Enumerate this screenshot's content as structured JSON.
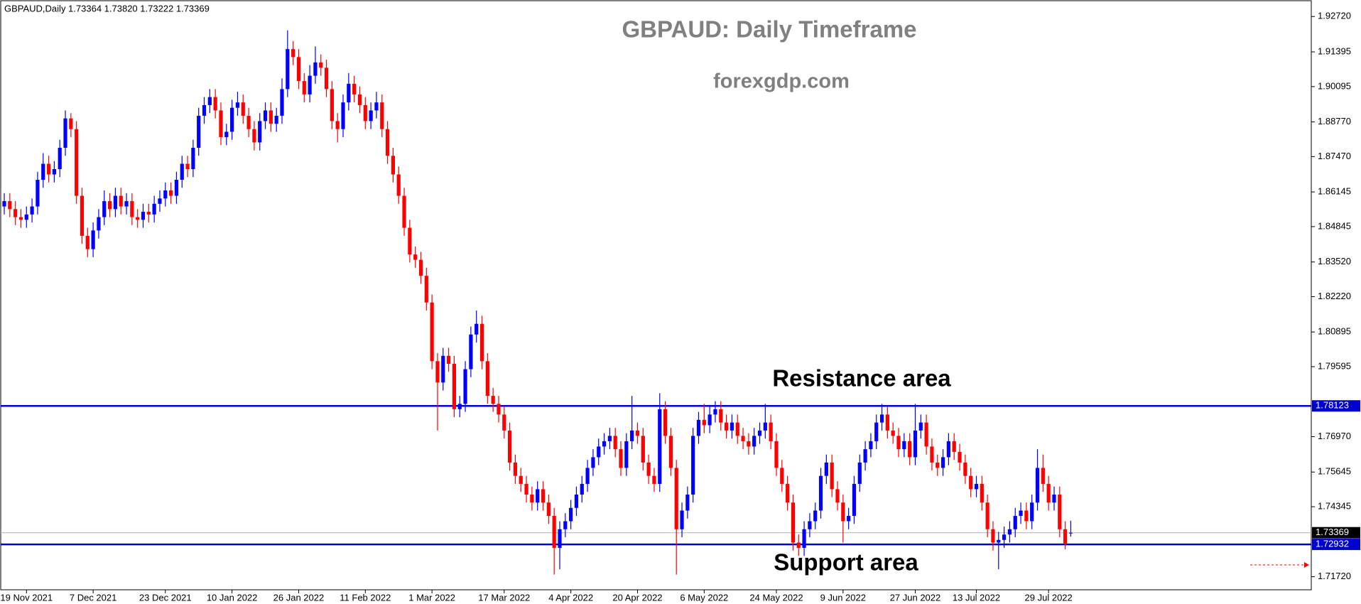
{
  "chart_data": {
    "type": "candlestick",
    "header": "GBPAUD,Daily  1.73364 1.73820 1.73222 1.73369",
    "title": "GBPAUD: Daily Timeframe",
    "subtitle": "forexgdp.com",
    "annotations": [
      "Resistance area",
      "Support area"
    ],
    "bull_color": "#0000ff",
    "bear_color": "#ff0000",
    "grid": false,
    "ylim": [
      1.7123,
      1.9334
    ],
    "yticks": [
      {
        "value": 1.9272,
        "label": "1.92720"
      },
      {
        "value": 1.91395,
        "label": "1.91395"
      },
      {
        "value": 1.90095,
        "label": "1.90095"
      },
      {
        "value": 1.8877,
        "label": "1.88770"
      },
      {
        "value": 1.8747,
        "label": "1.87470"
      },
      {
        "value": 1.86145,
        "label": "1.86145"
      },
      {
        "value": 1.84845,
        "label": "1.84845"
      },
      {
        "value": 1.8352,
        "label": "1.83520"
      },
      {
        "value": 1.8222,
        "label": "1.82220"
      },
      {
        "value": 1.80895,
        "label": "1.80895"
      },
      {
        "value": 1.79595,
        "label": "1.79595"
      },
      {
        "value": 1.7697,
        "label": "1.76970"
      },
      {
        "value": 1.75645,
        "label": "1.75645"
      },
      {
        "value": 1.74345,
        "label": "1.74345"
      },
      {
        "value": 1.7172,
        "label": "1.71720"
      }
    ],
    "levels": [
      {
        "value": 1.78123,
        "color": "#0000cc",
        "label_bg": "#0000cc"
      },
      {
        "value": 1.72932,
        "color": "#0000cc",
        "label_bg": "#0000cc"
      },
      {
        "value": 1.73369,
        "color": "#b0b0b0",
        "label_bg": "#000000"
      }
    ],
    "categories": [
      null,
      null,
      null,
      null,
      "19 Nov 2021",
      null,
      null,
      null,
      null,
      null,
      null,
      null,
      null,
      null,
      null,
      null,
      "7 Dec 2021",
      null,
      null,
      null,
      null,
      null,
      null,
      null,
      null,
      null,
      null,
      null,
      null,
      "23 Dec 2021",
      null,
      null,
      null,
      null,
      null,
      null,
      null,
      null,
      null,
      null,
      null,
      "10 Jan 2022",
      null,
      null,
      null,
      null,
      null,
      null,
      null,
      null,
      null,
      null,
      null,
      "26 Jan 2022",
      null,
      null,
      null,
      null,
      null,
      null,
      null,
      null,
      null,
      null,
      null,
      "11 Feb 2022",
      null,
      null,
      null,
      null,
      null,
      null,
      null,
      null,
      null,
      null,
      null,
      "1 Mar 2022",
      null,
      null,
      null,
      null,
      null,
      null,
      null,
      null,
      null,
      null,
      null,
      null,
      "17 Mar 2022",
      null,
      null,
      null,
      null,
      null,
      null,
      null,
      null,
      null,
      null,
      null,
      "4 Apr 2022",
      null,
      null,
      null,
      null,
      null,
      null,
      null,
      null,
      null,
      null,
      null,
      "20 Apr 2022",
      null,
      null,
      null,
      null,
      null,
      null,
      null,
      null,
      null,
      null,
      null,
      "6 May 2022",
      null,
      null,
      null,
      null,
      null,
      null,
      null,
      null,
      null,
      null,
      null,
      null,
      "24 May 2022",
      null,
      null,
      null,
      null,
      null,
      null,
      null,
      null,
      null,
      null,
      null,
      "9 Jun 2022",
      null,
      null,
      null,
      null,
      null,
      null,
      null,
      null,
      null,
      null,
      null,
      null,
      "27 Jun 2022",
      null,
      null,
      null,
      null,
      null,
      null,
      null,
      null,
      null,
      null,
      "13 Jul 2022",
      null,
      null,
      null,
      null,
      null,
      null,
      null,
      null,
      null,
      null,
      null,
      null,
      "29 Jul 2022",
      null,
      null,
      null,
      null
    ],
    "candles": [
      [
        1.856,
        1.861,
        1.853,
        1.858
      ],
      [
        1.858,
        1.861,
        1.852,
        1.855
      ],
      [
        1.855,
        1.858,
        1.849,
        1.852
      ],
      [
        1.852,
        1.855,
        1.848,
        1.851
      ],
      [
        1.851,
        1.856,
        1.848,
        1.853
      ],
      [
        1.853,
        1.859,
        1.85,
        1.856
      ],
      [
        1.856,
        1.869,
        1.853,
        1.866
      ],
      [
        1.866,
        1.876,
        1.863,
        1.872
      ],
      [
        1.872,
        1.875,
        1.865,
        1.868
      ],
      [
        1.868,
        1.873,
        1.865,
        1.87
      ],
      [
        1.87,
        1.881,
        1.867,
        1.878
      ],
      [
        1.878,
        1.892,
        1.875,
        1.889
      ],
      [
        1.889,
        1.891,
        1.882,
        1.885
      ],
      [
        1.885,
        1.888,
        1.857,
        1.86
      ],
      [
        1.86,
        1.863,
        1.842,
        1.845
      ],
      [
        1.845,
        1.848,
        1.837,
        1.84
      ],
      [
        1.84,
        1.85,
        1.837,
        1.847
      ],
      [
        1.847,
        1.855,
        1.844,
        1.852
      ],
      [
        1.852,
        1.862,
        1.849,
        1.858
      ],
      [
        1.858,
        1.861,
        1.852,
        1.855
      ],
      [
        1.855,
        1.863,
        1.852,
        1.86
      ],
      [
        1.86,
        1.863,
        1.853,
        1.856
      ],
      [
        1.856,
        1.861,
        1.853,
        1.858
      ],
      [
        1.858,
        1.861,
        1.849,
        1.852
      ],
      [
        1.852,
        1.855,
        1.848,
        1.851
      ],
      [
        1.851,
        1.857,
        1.848,
        1.854
      ],
      [
        1.854,
        1.857,
        1.85,
        1.853
      ],
      [
        1.853,
        1.86,
        1.85,
        1.857
      ],
      [
        1.857,
        1.862,
        1.854,
        1.859
      ],
      [
        1.859,
        1.865,
        1.856,
        1.862
      ],
      [
        1.862,
        1.865,
        1.857,
        1.86
      ],
      [
        1.86,
        1.869,
        1.857,
        1.866
      ],
      [
        1.866,
        1.875,
        1.863,
        1.872
      ],
      [
        1.872,
        1.875,
        1.867,
        1.87
      ],
      [
        1.87,
        1.881,
        1.867,
        1.878
      ],
      [
        1.878,
        1.893,
        1.875,
        1.89
      ],
      [
        1.89,
        1.897,
        1.887,
        1.894
      ],
      [
        1.894,
        1.9,
        1.891,
        1.897
      ],
      [
        1.897,
        1.9,
        1.889,
        1.892
      ],
      [
        1.892,
        1.895,
        1.879,
        1.882
      ],
      [
        1.882,
        1.887,
        1.879,
        1.884
      ],
      [
        1.884,
        1.896,
        1.881,
        1.893
      ],
      [
        1.893,
        1.899,
        1.89,
        1.895
      ],
      [
        1.895,
        1.898,
        1.887,
        1.89
      ],
      [
        1.89,
        1.893,
        1.882,
        1.885
      ],
      [
        1.885,
        1.888,
        1.877,
        1.88
      ],
      [
        1.88,
        1.891,
        1.877,
        1.888
      ],
      [
        1.888,
        1.895,
        1.885,
        1.892
      ],
      [
        1.892,
        1.895,
        1.884,
        1.887
      ],
      [
        1.887,
        1.893,
        1.884,
        1.89
      ],
      [
        1.89,
        1.904,
        1.887,
        1.9
      ],
      [
        1.9,
        1.922,
        1.897,
        1.915
      ],
      [
        1.915,
        1.918,
        1.909,
        1.912
      ],
      [
        1.912,
        1.915,
        1.9,
        1.903
      ],
      [
        1.903,
        1.906,
        1.895,
        1.898
      ],
      [
        1.898,
        1.909,
        1.895,
        1.905
      ],
      [
        1.905,
        1.916,
        1.902,
        1.91
      ],
      [
        1.91,
        1.913,
        1.905,
        1.908
      ],
      [
        1.908,
        1.911,
        1.897,
        1.9
      ],
      [
        1.9,
        1.903,
        1.885,
        1.888
      ],
      [
        1.888,
        1.891,
        1.88,
        1.885
      ],
      [
        1.885,
        1.898,
        1.882,
        1.895
      ],
      [
        1.895,
        1.906,
        1.892,
        1.902
      ],
      [
        1.902,
        1.905,
        1.895,
        1.898
      ],
      [
        1.898,
        1.901,
        1.891,
        1.894
      ],
      [
        1.894,
        1.897,
        1.885,
        1.888
      ],
      [
        1.888,
        1.895,
        1.885,
        1.892
      ],
      [
        1.892,
        1.899,
        1.889,
        1.895
      ],
      [
        1.895,
        1.898,
        1.882,
        1.885
      ],
      [
        1.885,
        1.888,
        1.872,
        1.875
      ],
      [
        1.875,
        1.878,
        1.865,
        1.868
      ],
      [
        1.868,
        1.871,
        1.857,
        1.86
      ],
      [
        1.86,
        1.863,
        1.845,
        1.848
      ],
      [
        1.848,
        1.851,
        1.835,
        1.838
      ],
      [
        1.838,
        1.841,
        1.833,
        1.836
      ],
      [
        1.836,
        1.839,
        1.827,
        1.83
      ],
      [
        1.83,
        1.833,
        1.817,
        1.82
      ],
      [
        1.82,
        1.823,
        1.795,
        1.798
      ],
      [
        1.798,
        1.801,
        1.772,
        1.79
      ],
      [
        1.79,
        1.803,
        1.787,
        1.8
      ],
      [
        1.8,
        1.803,
        1.794,
        1.797
      ],
      [
        1.797,
        1.8,
        1.777,
        1.78
      ],
      [
        1.78,
        1.785,
        1.777,
        1.782
      ],
      [
        1.782,
        1.798,
        1.779,
        1.795
      ],
      [
        1.795,
        1.811,
        1.792,
        1.808
      ],
      [
        1.808,
        1.817,
        1.805,
        1.812
      ],
      [
        1.812,
        1.815,
        1.795,
        1.798
      ],
      [
        1.798,
        1.801,
        1.782,
        1.785
      ],
      [
        1.785,
        1.788,
        1.779,
        1.782
      ],
      [
        1.782,
        1.785,
        1.775,
        1.778
      ],
      [
        1.778,
        1.781,
        1.769,
        1.772
      ],
      [
        1.772,
        1.775,
        1.757,
        1.76
      ],
      [
        1.76,
        1.763,
        1.752,
        1.755
      ],
      [
        1.755,
        1.758,
        1.749,
        1.752
      ],
      [
        1.752,
        1.755,
        1.745,
        1.748
      ],
      [
        1.748,
        1.751,
        1.742,
        1.745
      ],
      [
        1.745,
        1.753,
        1.742,
        1.75
      ],
      [
        1.75,
        1.753,
        1.742,
        1.745
      ],
      [
        1.745,
        1.748,
        1.737,
        1.74
      ],
      [
        1.74,
        1.743,
        1.718,
        1.728
      ],
      [
        1.728,
        1.738,
        1.72,
        1.735
      ],
      [
        1.735,
        1.741,
        1.732,
        1.738
      ],
      [
        1.738,
        1.746,
        1.735,
        1.743
      ],
      [
        1.743,
        1.751,
        1.74,
        1.748
      ],
      [
        1.748,
        1.755,
        1.745,
        1.752
      ],
      [
        1.752,
        1.761,
        1.749,
        1.758
      ],
      [
        1.758,
        1.765,
        1.755,
        1.762
      ],
      [
        1.762,
        1.769,
        1.759,
        1.766
      ],
      [
        1.766,
        1.771,
        1.763,
        1.768
      ],
      [
        1.768,
        1.773,
        1.765,
        1.77
      ],
      [
        1.77,
        1.773,
        1.762,
        1.765
      ],
      [
        1.765,
        1.768,
        1.755,
        1.758
      ],
      [
        1.758,
        1.771,
        1.755,
        1.768
      ],
      [
        1.768,
        1.785,
        1.765,
        1.772
      ],
      [
        1.772,
        1.775,
        1.767,
        1.77
      ],
      [
        1.77,
        1.773,
        1.757,
        1.76
      ],
      [
        1.76,
        1.763,
        1.752,
        1.755
      ],
      [
        1.755,
        1.758,
        1.749,
        1.752
      ],
      [
        1.752,
        1.786,
        1.749,
        1.78
      ],
      [
        1.78,
        1.783,
        1.767,
        1.77
      ],
      [
        1.77,
        1.773,
        1.755,
        1.758
      ],
      [
        1.758,
        1.761,
        1.718,
        1.735
      ],
      [
        1.735,
        1.745,
        1.732,
        1.742
      ],
      [
        1.742,
        1.751,
        1.739,
        1.748
      ],
      [
        1.748,
        1.773,
        1.745,
        1.77
      ],
      [
        1.77,
        1.779,
        1.767,
        1.776
      ],
      [
        1.776,
        1.782,
        1.771,
        1.774
      ],
      [
        1.774,
        1.781,
        1.771,
        1.778
      ],
      [
        1.778,
        1.783,
        1.775,
        1.78
      ],
      [
        1.78,
        1.783,
        1.772,
        1.775
      ],
      [
        1.775,
        1.778,
        1.769,
        1.772
      ],
      [
        1.772,
        1.778,
        1.769,
        1.775
      ],
      [
        1.775,
        1.778,
        1.767,
        1.77
      ],
      [
        1.77,
        1.773,
        1.765,
        1.768
      ],
      [
        1.768,
        1.771,
        1.763,
        1.766
      ],
      [
        1.766,
        1.773,
        1.763,
        1.77
      ],
      [
        1.77,
        1.775,
        1.767,
        1.772
      ],
      [
        1.772,
        1.782,
        1.769,
        1.775
      ],
      [
        1.775,
        1.778,
        1.765,
        1.768
      ],
      [
        1.768,
        1.771,
        1.755,
        1.758
      ],
      [
        1.758,
        1.761,
        1.749,
        1.752
      ],
      [
        1.752,
        1.755,
        1.742,
        1.745
      ],
      [
        1.745,
        1.748,
        1.727,
        1.73
      ],
      [
        1.73,
        1.733,
        1.725,
        1.728
      ],
      [
        1.728,
        1.738,
        1.725,
        1.735
      ],
      [
        1.735,
        1.741,
        1.732,
        1.738
      ],
      [
        1.738,
        1.745,
        1.735,
        1.742
      ],
      [
        1.742,
        1.758,
        1.739,
        1.755
      ],
      [
        1.755,
        1.763,
        1.752,
        1.76
      ],
      [
        1.76,
        1.763,
        1.747,
        1.75
      ],
      [
        1.75,
        1.753,
        1.742,
        1.745
      ],
      [
        1.745,
        1.748,
        1.73,
        1.738
      ],
      [
        1.738,
        1.743,
        1.735,
        1.74
      ],
      [
        1.74,
        1.755,
        1.737,
        1.752
      ],
      [
        1.752,
        1.763,
        1.749,
        1.76
      ],
      [
        1.76,
        1.768,
        1.757,
        1.765
      ],
      [
        1.765,
        1.771,
        1.762,
        1.768
      ],
      [
        1.768,
        1.778,
        1.765,
        1.775
      ],
      [
        1.775,
        1.782,
        1.772,
        1.778
      ],
      [
        1.778,
        1.781,
        1.769,
        1.772
      ],
      [
        1.772,
        1.775,
        1.767,
        1.77
      ],
      [
        1.77,
        1.773,
        1.762,
        1.765
      ],
      [
        1.765,
        1.771,
        1.762,
        1.768
      ],
      [
        1.768,
        1.771,
        1.759,
        1.762
      ],
      [
        1.762,
        1.782,
        1.759,
        1.772
      ],
      [
        1.772,
        1.778,
        1.769,
        1.775
      ],
      [
        1.775,
        1.778,
        1.763,
        1.766
      ],
      [
        1.766,
        1.769,
        1.757,
        1.76
      ],
      [
        1.76,
        1.763,
        1.755,
        1.758
      ],
      [
        1.758,
        1.765,
        1.755,
        1.762
      ],
      [
        1.762,
        1.771,
        1.759,
        1.768
      ],
      [
        1.768,
        1.771,
        1.761,
        1.764
      ],
      [
        1.764,
        1.767,
        1.757,
        1.76
      ],
      [
        1.76,
        1.763,
        1.752,
        1.755
      ],
      [
        1.755,
        1.758,
        1.747,
        1.75
      ],
      [
        1.75,
        1.755,
        1.747,
        1.752
      ],
      [
        1.752,
        1.755,
        1.742,
        1.745
      ],
      [
        1.745,
        1.748,
        1.732,
        1.735
      ],
      [
        1.735,
        1.738,
        1.727,
        1.73
      ],
      [
        1.73,
        1.734,
        1.72,
        1.731
      ],
      [
        1.731,
        1.736,
        1.728,
        1.733
      ],
      [
        1.733,
        1.738,
        1.73,
        1.735
      ],
      [
        1.735,
        1.743,
        1.732,
        1.74
      ],
      [
        1.74,
        1.745,
        1.737,
        1.742
      ],
      [
        1.742,
        1.745,
        1.735,
        1.738
      ],
      [
        1.738,
        1.748,
        1.735,
        1.745
      ],
      [
        1.745,
        1.765,
        1.742,
        1.758
      ],
      [
        1.758,
        1.763,
        1.749,
        1.752
      ],
      [
        1.752,
        1.755,
        1.742,
        1.745
      ],
      [
        1.745,
        1.751,
        1.742,
        1.748
      ],
      [
        1.748,
        1.751,
        1.732,
        1.735
      ],
      [
        1.735,
        1.738,
        1.7275,
        1.7297
      ],
      [
        1.73364,
        1.7382,
        1.73222,
        1.73369
      ]
    ]
  }
}
